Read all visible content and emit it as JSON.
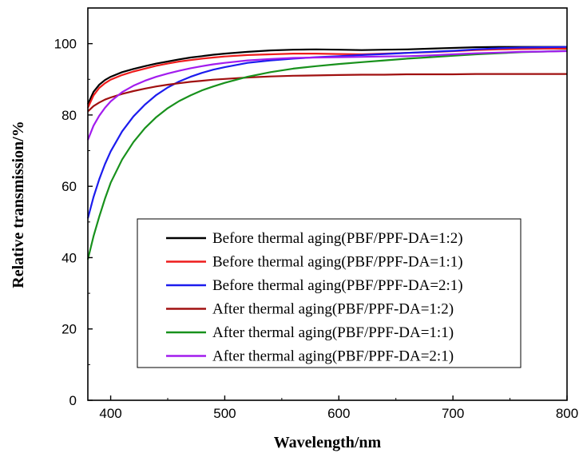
{
  "chart_data": {
    "type": "line",
    "xlabel": "Wavelength/nm",
    "ylabel": "Relative transmission/%",
    "xlim": [
      380,
      800
    ],
    "ylim": [
      0,
      110
    ],
    "xticks": [
      400,
      500,
      600,
      700,
      800
    ],
    "yticks": [
      0,
      20,
      40,
      60,
      80,
      100
    ],
    "grid": false,
    "legend_position": "lower-right-center",
    "series": [
      {
        "name": "Before thermal aging(PBF/PPF-DA=1:2)",
        "color": "#000000",
        "x": [
          380,
          385,
          390,
          395,
          400,
          410,
          420,
          430,
          440,
          450,
          460,
          470,
          480,
          490,
          500,
          520,
          540,
          560,
          580,
          600,
          620,
          640,
          660,
          680,
          700,
          720,
          740,
          760,
          780,
          800
        ],
        "y": [
          83,
          86.5,
          88.5,
          89.8,
          90.7,
          92,
          92.9,
          93.7,
          94.4,
          95,
          95.6,
          96.1,
          96.5,
          96.9,
          97.2,
          97.7,
          98.1,
          98.3,
          98.4,
          98.3,
          98.2,
          98.3,
          98.4,
          98.6,
          98.8,
          99,
          99.1,
          99.1,
          99.1,
          99.1
        ]
      },
      {
        "name": "Before thermal aging(PBF/PPF-DA=1:1)",
        "color": "#ee1c1c",
        "x": [
          380,
          385,
          390,
          395,
          400,
          410,
          420,
          430,
          440,
          450,
          460,
          470,
          480,
          490,
          500,
          520,
          540,
          560,
          580,
          600,
          620,
          640,
          660,
          680,
          700,
          720,
          740,
          760,
          780,
          800
        ],
        "y": [
          82,
          85.5,
          87.6,
          88.9,
          89.9,
          91.2,
          92.2,
          93,
          93.8,
          94.4,
          95,
          95.4,
          95.8,
          96.1,
          96.4,
          96.8,
          97,
          97.2,
          97.2,
          97.1,
          97,
          97.2,
          97.4,
          97.6,
          97.9,
          98.2,
          98.4,
          98.5,
          98.6,
          98.6
        ]
      },
      {
        "name": "Before thermal aging(PBF/PPF-DA=2:1)",
        "color": "#1c1cee",
        "x": [
          380,
          385,
          390,
          395,
          400,
          410,
          420,
          430,
          440,
          450,
          460,
          470,
          480,
          490,
          500,
          520,
          540,
          560,
          580,
          600,
          620,
          640,
          660,
          680,
          700,
          720,
          740,
          760,
          780,
          800
        ],
        "y": [
          51,
          57,
          62,
          66.2,
          69.8,
          75.4,
          79.6,
          82.9,
          85.6,
          87.7,
          89.4,
          90.7,
          91.8,
          92.7,
          93.4,
          94.6,
          95.3,
          95.8,
          96.2,
          96.5,
          96.8,
          97.1,
          97.4,
          97.7,
          98,
          98.4,
          98.7,
          98.9,
          99,
          99.1
        ]
      },
      {
        "name": "After thermal aging(PBF/PPF-DA=1:2)",
        "color": "#a01010",
        "x": [
          380,
          385,
          390,
          395,
          400,
          410,
          420,
          430,
          440,
          450,
          460,
          470,
          480,
          490,
          500,
          520,
          540,
          560,
          580,
          600,
          620,
          640,
          660,
          680,
          700,
          720,
          740,
          760,
          780,
          800
        ],
        "y": [
          81,
          82.5,
          83.5,
          84.3,
          84.9,
          85.9,
          86.7,
          87.4,
          88,
          88.5,
          88.9,
          89.3,
          89.6,
          89.9,
          90.1,
          90.5,
          90.8,
          91,
          91.1,
          91.2,
          91.3,
          91.3,
          91.4,
          91.4,
          91.4,
          91.5,
          91.5,
          91.5,
          91.5,
          91.5
        ]
      },
      {
        "name": "After thermal aging(PBF/PPF-DA=1:1)",
        "color": "#18911c",
        "x": [
          380,
          385,
          390,
          395,
          400,
          410,
          420,
          430,
          440,
          450,
          460,
          470,
          480,
          490,
          500,
          520,
          540,
          560,
          580,
          600,
          620,
          640,
          660,
          680,
          700,
          720,
          740,
          760,
          780,
          800
        ],
        "y": [
          39.5,
          46,
          51.5,
          56.5,
          61,
          67.5,
          72.4,
          76.3,
          79.4,
          81.9,
          83.9,
          85.5,
          86.9,
          88,
          89,
          90.7,
          92,
          93,
          93.7,
          94.3,
          94.8,
          95.3,
          95.8,
          96.2,
          96.6,
          97,
          97.3,
          97.6,
          97.8,
          98
        ]
      },
      {
        "name": "After thermal aging(PBF/PPF-DA=2:1)",
        "color": "#a21cee",
        "x": [
          380,
          385,
          390,
          395,
          400,
          410,
          420,
          430,
          440,
          450,
          460,
          470,
          480,
          490,
          500,
          520,
          540,
          560,
          580,
          600,
          620,
          640,
          660,
          680,
          700,
          720,
          740,
          760,
          780,
          800
        ],
        "y": [
          73,
          77,
          79.8,
          82,
          83.8,
          86.4,
          88.2,
          89.6,
          90.7,
          91.6,
          92.4,
          93.1,
          93.7,
          94.2,
          94.6,
          95.3,
          95.7,
          96,
          96.1,
          96.2,
          96.3,
          96.4,
          96.5,
          96.7,
          97,
          97.3,
          97.5,
          97.7,
          97.8,
          97.9
        ]
      }
    ]
  }
}
